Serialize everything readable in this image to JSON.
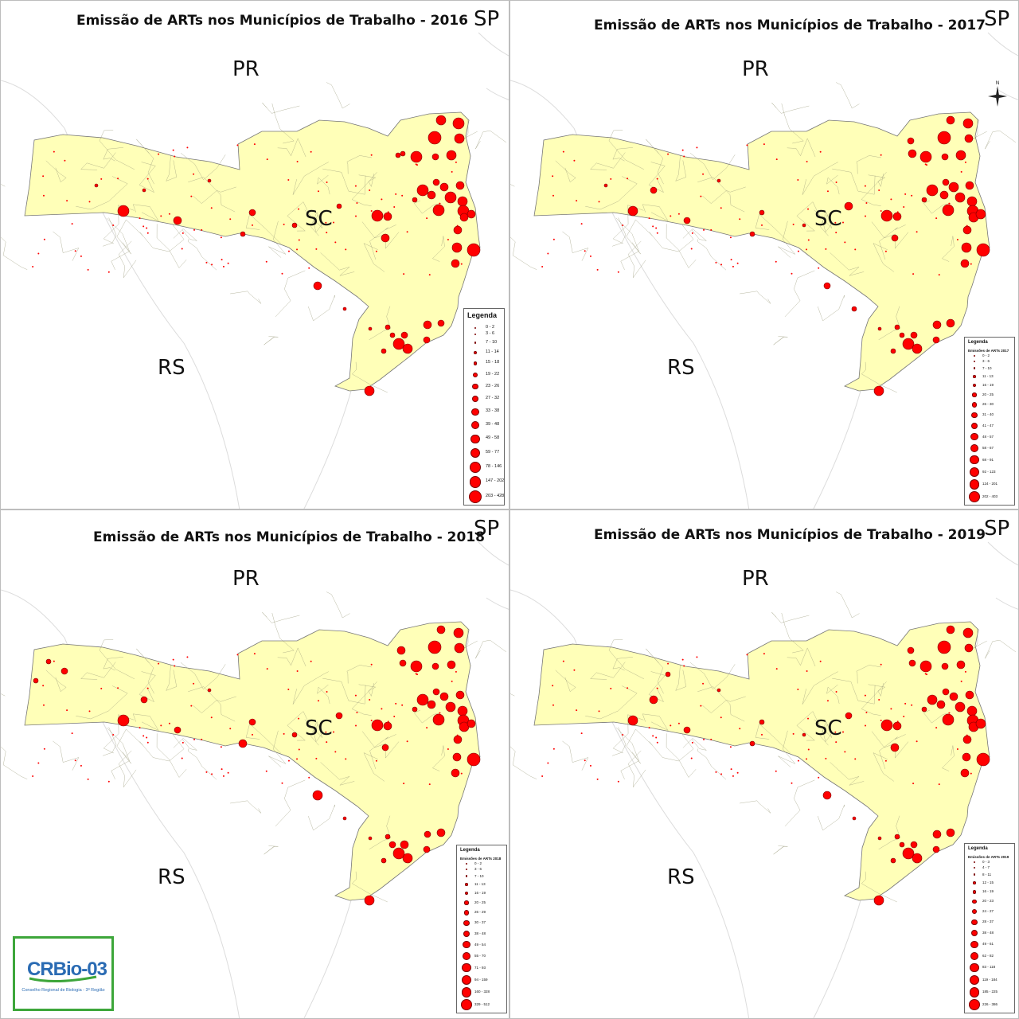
{
  "panels": [
    {
      "title": "Emissão de ARTs nos Municípios de Trabalho - 2016",
      "labels": {
        "sp": "SP",
        "pr": "PR",
        "sc": "SC",
        "rs": "RS"
      },
      "legend": {
        "title": "Legenda",
        "subtitle": "",
        "classes": [
          "0 - 2",
          "3 - 6",
          "7 - 10",
          "11 - 14",
          "15 - 18",
          "19 - 22",
          "23 - 26",
          "27 - 32",
          "33 - 38",
          "39 - 48",
          "49 - 58",
          "59 - 77",
          "78 - 146",
          "147 - 202",
          "203 - 428"
        ]
      },
      "has_compass": false
    },
    {
      "title": "Emissão de ARTs nos Municípios de Trabalho - 2017",
      "labels": {
        "sp": "SP",
        "pr": "PR",
        "sc": "SC",
        "rs": "RS"
      },
      "legend": {
        "title": "Legenda",
        "subtitle": "Emissões de ARTs 2017",
        "classes": [
          "0 - 2",
          "3 - 6",
          "7 - 10",
          "11 - 13",
          "16 - 19",
          "20 - 25",
          "26 - 30",
          "31 - 40",
          "41 - 47",
          "48 - 57",
          "58 - 67",
          "68 - 91",
          "92 - 123",
          "124 - 201",
          "202 - 403"
        ]
      },
      "has_compass": true,
      "compass_label": "N"
    },
    {
      "title": "Emissão de ARTs nos Municípios de Trabalho - 2018",
      "labels": {
        "sp": "SP",
        "pr": "PR",
        "sc": "SC",
        "rs": "RS"
      },
      "legend": {
        "title": "Legenda",
        "subtitle": "Emissões de ARTs 2018",
        "classes": [
          "0 - 2",
          "3 - 6",
          "7 - 10",
          "11 - 13",
          "16 - 19",
          "20 - 25",
          "26 - 29",
          "30 - 37",
          "38 - 48",
          "49 - 54",
          "55 - 70",
          "71 - 93",
          "94 - 159",
          "160 - 328",
          "329 - 512"
        ]
      },
      "has_compass": false
    },
    {
      "title": "Emissão de ARTs nos Municípios de Trabalho - 2019",
      "labels": {
        "sp": "SP",
        "pr": "PR",
        "sc": "SC",
        "rs": "RS"
      },
      "legend": {
        "title": "Legenda",
        "subtitle": "Emissões de ARTs 2019",
        "classes": [
          "0 - 3",
          "4 - 7",
          "8 - 11",
          "12 - 15",
          "16 - 19",
          "20 - 23",
          "24 - 27",
          "28 - 37",
          "38 - 48",
          "49 - 61",
          "62 - 82",
          "83 - 118",
          "119 - 184",
          "185 - 225",
          "226 - 386"
        ]
      },
      "has_compass": false
    }
  ],
  "logo": {
    "wordmark": "CRBio-03",
    "caption": "Conselho Regional de Biologia - 3ª Região"
  },
  "colors": {
    "land": "#ffffb8",
    "symbol": "#ff0000",
    "symbol_stroke": "#7a0000",
    "border": "#777777"
  }
}
